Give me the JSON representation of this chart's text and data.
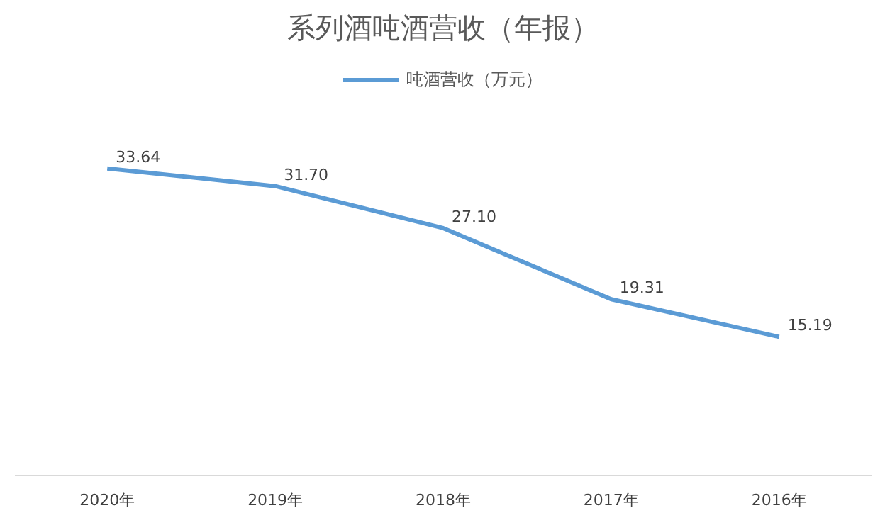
{
  "chart_data": {
    "type": "line",
    "title": "系列酒吨酒营收（年报）",
    "categories": [
      "2020年",
      "2019年",
      "2018年",
      "2017年",
      "2016年"
    ],
    "series": [
      {
        "name": "吨酒营收（万元）",
        "color": "#5b9bd5",
        "values": [
          33.64,
          31.7,
          27.1,
          19.31,
          15.19
        ],
        "value_labels": [
          "33.64",
          "31.70",
          "27.10",
          "19.31",
          "15.19"
        ]
      }
    ],
    "legend": "top"
  }
}
